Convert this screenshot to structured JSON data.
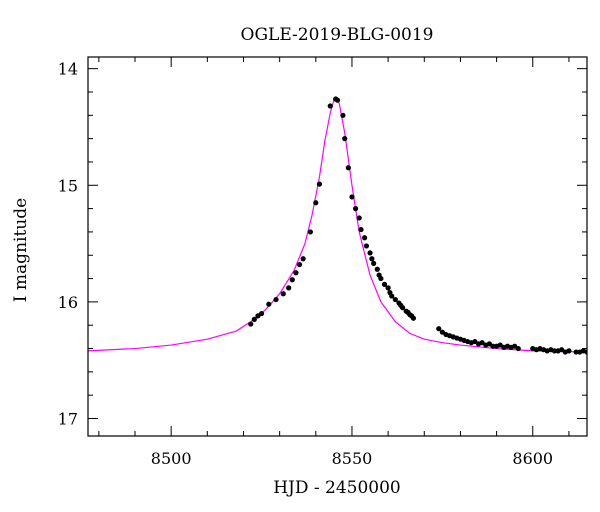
{
  "chart_data": {
    "type": "scatter",
    "title": "OGLE-2019-BLG-0019",
    "xlabel": "HJD - 2450000",
    "ylabel": "I magnitude",
    "xlim": [
      8477,
      8615
    ],
    "ylim": [
      17.15,
      13.9
    ],
    "y_inverted": true,
    "grid": false,
    "x_ticks": [
      8500,
      8550,
      8600
    ],
    "y_ticks": [
      14,
      15,
      16,
      17
    ],
    "x_tick_labels": [
      "8500",
      "8550",
      "8600"
    ],
    "y_tick_labels": [
      "14",
      "15",
      "16",
      "17"
    ],
    "colors": {
      "model": "#ff00ff",
      "points": "#000000",
      "axes": "#000000"
    },
    "model": {
      "name": "",
      "x": [
        8477,
        8490,
        8500,
        8510,
        8518,
        8522,
        8526,
        8530,
        8534,
        8537,
        8539,
        8541,
        8542.5,
        8544,
        8545,
        8545.8,
        8546.5,
        8548,
        8550,
        8552,
        8555,
        8558,
        8562,
        8566,
        8570,
        8575,
        8580,
        8590,
        8600,
        8615
      ],
      "y": [
        16.42,
        16.4,
        16.37,
        16.32,
        16.25,
        16.17,
        16.07,
        15.93,
        15.73,
        15.5,
        15.25,
        14.93,
        14.62,
        14.38,
        14.27,
        14.26,
        14.3,
        14.55,
        15.0,
        15.4,
        15.77,
        16.0,
        16.17,
        16.27,
        16.32,
        16.35,
        16.37,
        16.4,
        16.42,
        16.43
      ]
    },
    "series": [
      {
        "name": "",
        "x": [
          8522.0,
          8523.0,
          8524.0,
          8525.0,
          8527.0,
          8529.0,
          8531.0,
          8532.5,
          8533.5,
          8534.5,
          8535.5,
          8536.5,
          8538.5,
          8540.0,
          8541.0,
          8544.0,
          8545.5,
          8546.0,
          8547.5,
          8548.0,
          8549.0,
          8550.0,
          8551.0,
          8552.0,
          8552.5,
          8553.5,
          8554.0,
          8555.0,
          8555.5,
          8556.0,
          8557.0,
          8557.5,
          8558.0,
          8559.0,
          8560.0,
          8560.5,
          8561.0,
          8562.0,
          8563.0,
          8563.5,
          8564.0,
          8565.0,
          8565.5,
          8566.0,
          8566.5,
          8567.0,
          8574.0,
          8575.0,
          8576.0,
          8577.0,
          8578.0,
          8579.0,
          8580.0,
          8581.0,
          8582.0,
          8583.0,
          8584.0,
          8585.0,
          8586.0,
          8587.0,
          8588.0,
          8589.0,
          8590.0,
          8591.0,
          8592.0,
          8593.0,
          8594.0,
          8595.0,
          8596.0,
          8600.0,
          8601.0,
          8602.0,
          8603.0,
          8604.0,
          8605.0,
          8606.0,
          8607.0,
          8608.0,
          8609.0,
          8610.0,
          8612.0,
          8613.0,
          8614.0,
          8615.0
        ],
        "y": [
          16.19,
          16.15,
          16.12,
          16.1,
          16.02,
          15.98,
          15.93,
          15.88,
          15.81,
          15.75,
          15.68,
          15.63,
          15.4,
          15.15,
          14.99,
          14.32,
          14.26,
          14.27,
          14.4,
          14.6,
          14.85,
          15.1,
          15.2,
          15.28,
          15.38,
          15.45,
          15.52,
          15.58,
          15.63,
          15.67,
          15.72,
          15.77,
          15.8,
          15.85,
          15.88,
          15.92,
          15.95,
          15.98,
          16.01,
          16.03,
          16.05,
          16.08,
          16.09,
          16.11,
          16.12,
          16.14,
          16.23,
          16.26,
          16.28,
          16.29,
          16.3,
          16.31,
          16.32,
          16.33,
          16.34,
          16.35,
          16.34,
          16.36,
          16.35,
          16.37,
          16.36,
          16.38,
          16.38,
          16.37,
          16.39,
          16.38,
          16.39,
          16.38,
          16.4,
          16.4,
          16.41,
          16.4,
          16.41,
          16.42,
          16.41,
          16.42,
          16.42,
          16.41,
          16.43,
          16.42,
          16.43,
          16.43,
          16.42,
          16.43
        ]
      }
    ]
  }
}
